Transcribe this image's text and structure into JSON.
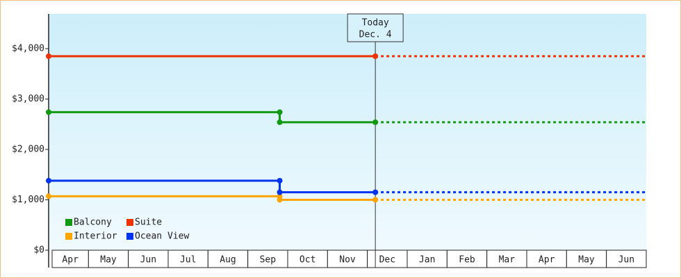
{
  "chart_data": {
    "type": "step-line",
    "categories": [
      "Apr",
      "May",
      "Jun",
      "Jul",
      "Aug",
      "Sep",
      "Oct",
      "Nov",
      "Dec",
      "Jan",
      "Feb",
      "Mar",
      "Apr",
      "May",
      "Jun"
    ],
    "xlim": [
      0,
      15
    ],
    "ylim": [
      0,
      4690
    ],
    "yticks": [
      {
        "value": 0,
        "label": "$0"
      },
      {
        "value": 1000,
        "label": "$1,000"
      },
      {
        "value": 2000,
        "label": "$2,000"
      },
      {
        "value": 3000,
        "label": "$3,000"
      },
      {
        "value": 4000,
        "label": "$4,000"
      }
    ],
    "annotation": {
      "x": 8.2,
      "lines": [
        "Today",
        "Dec. 4"
      ]
    },
    "legend": "bottom-left",
    "series": [
      {
        "name": "Balcony",
        "color": "#119911",
        "x": [
          0,
          5.8,
          5.8,
          8.2
        ],
        "values": [
          2740,
          2740,
          2540,
          2540
        ]
      },
      {
        "name": "Suite",
        "color": "#ee3300",
        "x": [
          0,
          8.2
        ],
        "values": [
          3850,
          3850
        ]
      },
      {
        "name": "Interior",
        "color": "#ffa500",
        "x": [
          0,
          5.8,
          5.8,
          8.2
        ],
        "values": [
          1070,
          1070,
          1000,
          1000
        ]
      },
      {
        "name": "Ocean View",
        "color": "#0033ee",
        "x": [
          0,
          5.8,
          5.8,
          8.2
        ],
        "values": [
          1380,
          1380,
          1150,
          1150
        ]
      }
    ]
  }
}
